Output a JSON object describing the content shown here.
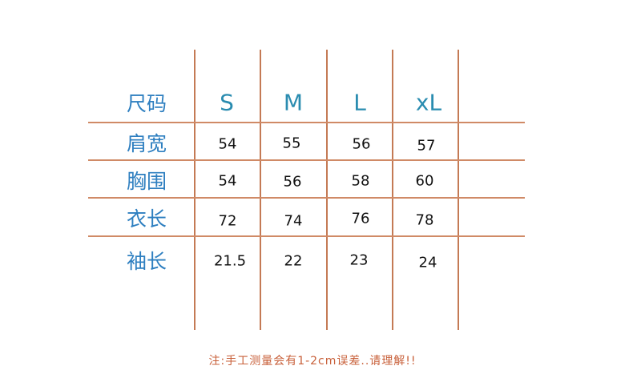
{
  "table": {
    "header_label": "尺码",
    "sizes": [
      "S",
      "M",
      "L",
      "xL"
    ],
    "rows": [
      {
        "label": "肩宽",
        "values": [
          "54",
          "55",
          "56",
          "57"
        ]
      },
      {
        "label": "胸围",
        "values": [
          "54",
          "56",
          "58",
          "60"
        ]
      },
      {
        "label": "衣长",
        "values": [
          "72",
          "74",
          "76",
          "78"
        ]
      },
      {
        "label": "袖长",
        "values": [
          "21.5",
          "22",
          "23",
          "24"
        ]
      }
    ]
  },
  "note": "注:手工测量会有1-2cm误差..请理解!!",
  "colors": {
    "grid": "#c47a55",
    "row_label": "#2e7fc0",
    "size_header": "#2a8cb0",
    "note": "#c8603a"
  }
}
